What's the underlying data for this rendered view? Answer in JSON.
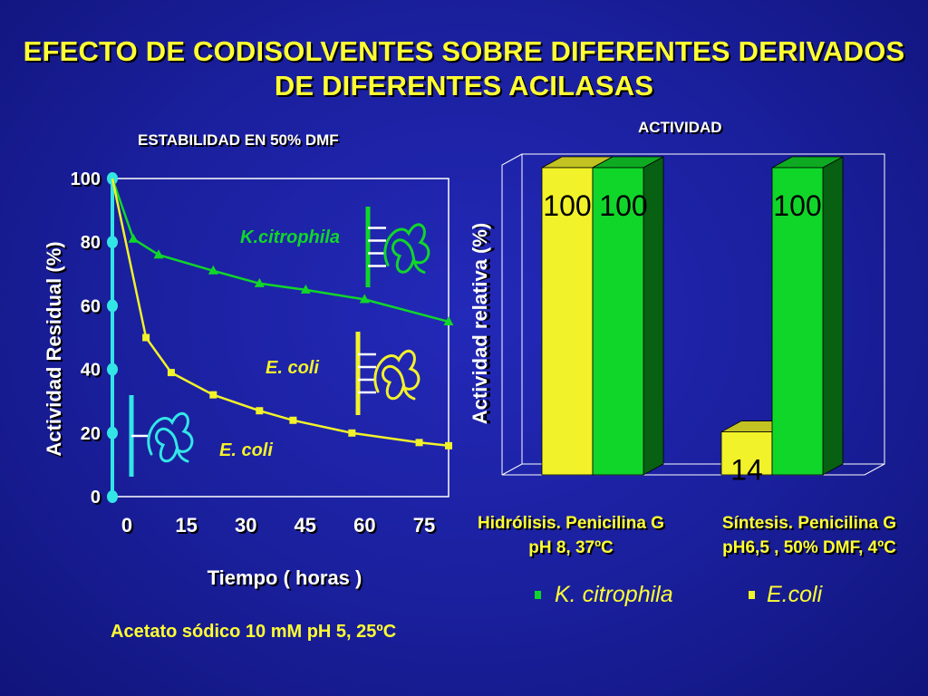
{
  "title_lines": [
    "EFECTO DE CODISOLVENTES SOBRE DIFERENTES DERIVADOS",
    "DE DIFERENTES ACILASAS"
  ],
  "colors": {
    "background": "#1a1f9c",
    "title": "#ffff33",
    "green": "#11d62a",
    "yellow": "#f2f22a",
    "cyan": "#33e6e6"
  },
  "chart_data": [
    {
      "type": "line",
      "title": "ESTABILIDAD EN 50% DMF",
      "xlabel": "Tiempo ( horas )",
      "ylabel": "Actividad Residual (%)",
      "xlim": [
        0,
        80
      ],
      "ylim": [
        0,
        100
      ],
      "x_ticks": [
        "0",
        "15",
        "30",
        "45",
        "60",
        "75"
      ],
      "y_ticks": [
        "0",
        "20",
        "40",
        "60",
        "80",
        "100"
      ],
      "series": [
        {
          "name": "K.citrophila",
          "color": "#11d62a",
          "marker": "triangle",
          "x": [
            0,
            5,
            11,
            24,
            35,
            46,
            60,
            80
          ],
          "y": [
            100,
            81,
            76,
            71,
            67,
            65,
            62,
            55
          ]
        },
        {
          "name": "E. coli",
          "color": "#f2f22a",
          "marker": "square",
          "x": [
            0,
            8,
            14,
            24,
            35,
            43,
            57,
            73,
            80
          ],
          "y": [
            100,
            50,
            39,
            32,
            27,
            24,
            20,
            17,
            16
          ]
        }
      ],
      "annotations": [
        {
          "text": "K.citrophila",
          "color": "#11d62a"
        },
        {
          "text": "E. coli",
          "color": "#f2f22a"
        },
        {
          "text": "E. coli",
          "color": "#f2f22a"
        }
      ],
      "footnote": "Acetato sódico 10 mM pH 5, 25ºC"
    },
    {
      "type": "bar",
      "title": "ACTIVIDAD",
      "ylabel": "Actividad relativa (%)",
      "ylim": [
        0,
        100
      ],
      "categories": [
        [
          "Hidrólisis. Penicilina  G",
          "pH 8, 37ºC"
        ],
        [
          "Síntesis. Penicilina  G",
          "pH6,5 , 50% DMF, 4ºC"
        ]
      ],
      "series": [
        {
          "name": "E.coli",
          "color": "#f2f22a",
          "values": [
            100,
            14
          ],
          "labels": [
            "100",
            "14"
          ]
        },
        {
          "name": "K. citrophila",
          "color": "#11d62a",
          "values": [
            100,
            100
          ],
          "labels": [
            "100",
            "100"
          ]
        }
      ],
      "legend": [
        {
          "label": "K. citrophila",
          "color": "#11d62a"
        },
        {
          "label": "E.coli",
          "color": "#f2f22a"
        }
      ]
    }
  ]
}
